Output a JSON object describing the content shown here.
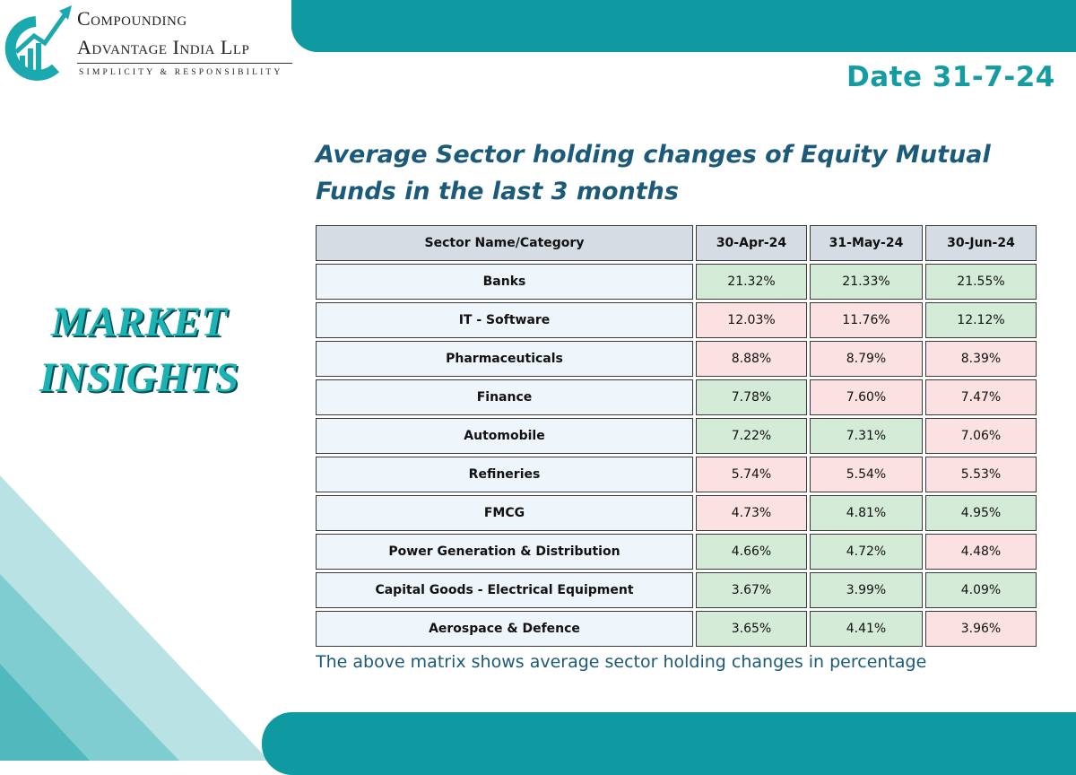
{
  "brand": {
    "name_line1": "Compounding",
    "name_line2": "Advantage India Llp",
    "tagline": "SIMPLICITY & RESPONSIBILITY"
  },
  "date_label": "Date 31-7-24",
  "side_heading": [
    "MARKET",
    "INSIGHTS"
  ],
  "title": "Average Sector holding changes of Equity Mutual Funds in the last 3 months",
  "table": {
    "headers": [
      "Sector Name/Category",
      "30-Apr-24",
      "31-May-24",
      "30-Jun-24"
    ],
    "rows": [
      {
        "sector": "Banks",
        "values": [
          "21.32%",
          "21.33%",
          "21.55%"
        ],
        "colors": [
          "up",
          "up",
          "up"
        ]
      },
      {
        "sector": "IT - Software",
        "values": [
          "12.03%",
          "11.76%",
          "12.12%"
        ],
        "colors": [
          "down",
          "down",
          "up"
        ]
      },
      {
        "sector": "Pharmaceuticals",
        "values": [
          "8.88%",
          "8.79%",
          "8.39%"
        ],
        "colors": [
          "down",
          "down",
          "down"
        ]
      },
      {
        "sector": "Finance",
        "values": [
          "7.78%",
          "7.60%",
          "7.47%"
        ],
        "colors": [
          "up",
          "down",
          "down"
        ]
      },
      {
        "sector": "Automobile",
        "values": [
          "7.22%",
          "7.31%",
          "7.06%"
        ],
        "colors": [
          "up",
          "up",
          "down"
        ]
      },
      {
        "sector": "Refineries",
        "values": [
          "5.74%",
          "5.54%",
          "5.53%"
        ],
        "colors": [
          "down",
          "down",
          "down"
        ]
      },
      {
        "sector": "FMCG",
        "values": [
          "4.73%",
          "4.81%",
          "4.95%"
        ],
        "colors": [
          "down",
          "up",
          "up"
        ]
      },
      {
        "sector": "Power Generation & Distribution",
        "values": [
          "4.66%",
          "4.72%",
          "4.48%"
        ],
        "colors": [
          "up",
          "up",
          "down"
        ]
      },
      {
        "sector": "Capital Goods - Electrical Equipment",
        "values": [
          "3.67%",
          "3.99%",
          "4.09%"
        ],
        "colors": [
          "up",
          "up",
          "up"
        ]
      },
      {
        "sector": "Aerospace & Defence",
        "values": [
          "3.65%",
          "4.41%",
          "3.96%"
        ],
        "colors": [
          "up",
          "up",
          "down"
        ]
      }
    ]
  },
  "footnote": "The above matrix shows average sector holding changes in percentage",
  "colors": {
    "brand_teal": "#0e9aa0",
    "title_navy": "#1c5a7a",
    "increase_green": "#d3ebd7",
    "decrease_pink": "#fbe1e2"
  }
}
